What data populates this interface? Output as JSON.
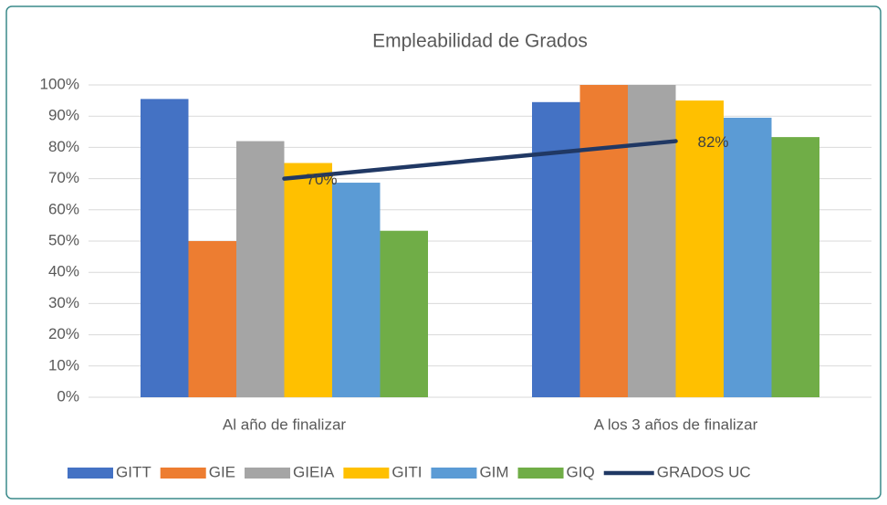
{
  "chart_data": {
    "type": "bar",
    "title": "Empleabilidad de Grados",
    "categories": [
      "Al año de finalizar",
      "A los 3 años de finalizar"
    ],
    "series": [
      {
        "name": "GITT",
        "color": "#4472c4",
        "values": [
          95.5,
          94.5
        ]
      },
      {
        "name": "GIE",
        "color": "#ed7d31",
        "values": [
          50,
          100
        ]
      },
      {
        "name": "GIEIA",
        "color": "#a5a5a5",
        "values": [
          82,
          100
        ]
      },
      {
        "name": "GITI",
        "color": "#ffc000",
        "values": [
          75,
          95
        ]
      },
      {
        "name": "GIM",
        "color": "#5b9bd5",
        "values": [
          68.7,
          89.5
        ]
      },
      {
        "name": "GIQ",
        "color": "#70ad47",
        "values": [
          53.3,
          83.3
        ]
      },
      {
        "name": "GRADOS UC",
        "color": "#203864",
        "type": "line",
        "values": [
          70,
          82
        ],
        "value_labels": [
          "70%",
          "82%"
        ]
      }
    ],
    "ylim": [
      0,
      100
    ],
    "yticks": [
      {
        "value": 0,
        "label": "0%"
      },
      {
        "value": 10,
        "label": "10%"
      },
      {
        "value": 20,
        "label": "20%"
      },
      {
        "value": 30,
        "label": "30%"
      },
      {
        "value": 40,
        "label": "40%"
      },
      {
        "value": 50,
        "label": "50%"
      },
      {
        "value": 60,
        "label": "60%"
      },
      {
        "value": 70,
        "label": "70%"
      },
      {
        "value": 80,
        "label": "80%"
      },
      {
        "value": 90,
        "label": "90%"
      },
      {
        "value": 100,
        "label": "100%"
      }
    ],
    "grid": true,
    "legend": "bottom"
  }
}
